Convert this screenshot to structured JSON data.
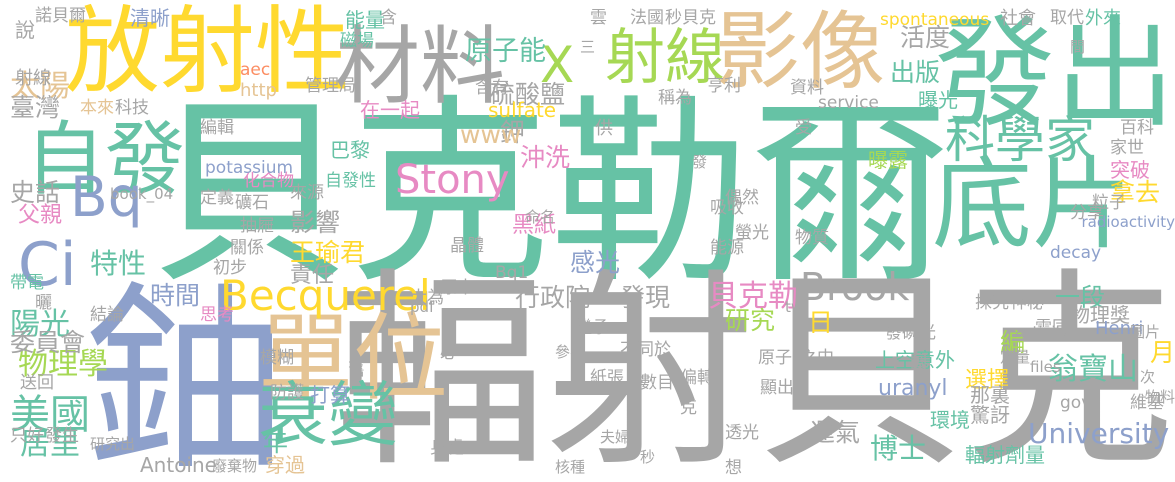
{
  "words": [
    {
      "text": "貝克勒爾",
      "color": "#66c2a5"
    },
    {
      "text": "輻射貝克",
      "color": "#a6a6a6"
    },
    {
      "text": "鈾",
      "color": "#8da0cb"
    },
    {
      "text": "發出",
      "color": "#66c2a5"
    },
    {
      "text": "放射性",
      "color": "#ffd92f"
    },
    {
      "text": "射線",
      "color": "#a6d854"
    },
    {
      "text": "材料",
      "color": "#a6a6a6"
    },
    {
      "text": "影像",
      "color": "#e5c494"
    },
    {
      "text": "X",
      "color": "#a6d854"
    },
    {
      "text": "自發",
      "color": "#66c2a5"
    },
    {
      "text": "單位",
      "color": "#e5c494"
    },
    {
      "text": "衰變",
      "color": "#66c2a5"
    },
    {
      "text": "底片",
      "color": "#66c2a5"
    },
    {
      "text": "科學家",
      "color": "#66c2a5"
    },
    {
      "text": "Bq",
      "color": "#8da0cb"
    },
    {
      "text": "Ci",
      "color": "#8da0cb"
    },
    {
      "text": "Becquerel",
      "color": "#ffd92f"
    },
    {
      "text": "Stony",
      "color": "#e78ac3"
    },
    {
      "text": "Brook",
      "color": "#a6a6a6"
    },
    {
      "text": "University",
      "color": "#8da0cb"
    },
    {
      "text": "美國",
      "color": "#66c2a5"
    },
    {
      "text": "物理學",
      "color": "#a6d854"
    },
    {
      "text": "居里",
      "color": "#66c2a5"
    },
    {
      "text": "陽光",
      "color": "#66c2a5"
    },
    {
      "text": "委員會",
      "color": "#a6a6a6"
    },
    {
      "text": "太陽",
      "color": "#e5c494"
    },
    {
      "text": "臺灣",
      "color": "#a6a6a6"
    },
    {
      "text": "史話",
      "color": "#a6a6a6"
    },
    {
      "text": "父親",
      "color": "#e78ac3"
    },
    {
      "text": "特性",
      "color": "#66c2a5"
    },
    {
      "text": "時間",
      "color": "#8da0cb"
    },
    {
      "text": "翁寶山",
      "color": "#66c2a5"
    },
    {
      "text": "博士",
      "color": "#66c2a5"
    },
    {
      "text": "貝克勒",
      "color": "#e78ac3"
    },
    {
      "text": "發現",
      "color": "#a6a6a6"
    },
    {
      "text": "研究",
      "color": "#a6d854"
    },
    {
      "text": "行政院",
      "color": "#a6a6a6"
    },
    {
      "text": "感光",
      "color": "#8da0cb"
    },
    {
      "text": "沖洗",
      "color": "#e78ac3"
    },
    {
      "text": "影響",
      "color": "#a6a6a6"
    },
    {
      "text": "王瑜君",
      "color": "#ffd92f"
    },
    {
      "text": "責任",
      "color": "#a6a6a6"
    },
    {
      "text": "黑紙",
      "color": "#e78ac3"
    },
    {
      "text": "鉀",
      "color": "#a6a6a6"
    },
    {
      "text": "www",
      "color": "#e5c494"
    },
    {
      "text": "巴黎",
      "color": "#66c2a5"
    },
    {
      "text": "自發性",
      "color": "#66c2a5"
    },
    {
      "text": "化合物",
      "color": "#e78ac3"
    },
    {
      "text": "原子能",
      "color": "#66c2a5"
    },
    {
      "text": "硫酸鹽",
      "color": "#a6a6a6"
    },
    {
      "text": "sulfate",
      "color": "#ffd92f"
    },
    {
      "text": "在一起",
      "color": "#e78ac3"
    },
    {
      "text": "活度",
      "color": "#a6a6a6"
    },
    {
      "text": "出版",
      "color": "#66c2a5"
    },
    {
      "text": "曝光",
      "color": "#66c2a5"
    },
    {
      "text": "曝露",
      "color": "#a6d854"
    },
    {
      "text": "突破",
      "color": "#e78ac3"
    },
    {
      "text": "拿去",
      "color": "#ffd92f"
    },
    {
      "text": "一段",
      "color": "#66c2a5"
    },
    {
      "text": "物理獎",
      "color": "#a6a6a6"
    },
    {
      "text": "Henri",
      "color": "#8da0cb"
    },
    {
      "text": "月",
      "color": "#ffd92f"
    },
    {
      "text": "日",
      "color": "#ffd92f"
    },
    {
      "text": "年",
      "color": "#66c2a5"
    },
    {
      "text": "編",
      "color": "#a6d854"
    },
    {
      "text": "上空",
      "color": "#66c2a5"
    },
    {
      "text": "意外",
      "color": "#66c2a5"
    },
    {
      "text": "uranyl",
      "color": "#8da0cb"
    },
    {
      "text": "選擇",
      "color": "#ffd92f"
    },
    {
      "text": "驚訝",
      "color": "#a6a6a6"
    },
    {
      "text": "那裏",
      "color": "#a6a6a6"
    },
    {
      "text": "環境",
      "color": "#66c2a5"
    },
    {
      "text": "運氣",
      "color": "#a6a6a6"
    },
    {
      "text": "輻射劑量",
      "color": "#66c2a5"
    },
    {
      "text": "穿過",
      "color": "#e5c494"
    },
    {
      "text": "打算",
      "color": "#8da0cb"
    },
    {
      "text": "Antoine",
      "color": "#a6a6a6"
    },
    {
      "text": "potassium",
      "color": "#8da0cb"
    },
    {
      "text": "spontaneous",
      "color": "#ffd92f"
    },
    {
      "text": "能量",
      "color": "#66c2a5"
    },
    {
      "text": "磁場",
      "color": "#66c2a5"
    },
    {
      "text": "清晰",
      "color": "#8da0cb"
    },
    {
      "text": "諾貝爾",
      "color": "#a6a6a6"
    },
    {
      "text": "說",
      "color": "#a6a6a6"
    },
    {
      "text": "射線",
      "color": "#a6a6a6"
    },
    {
      "text": "科技",
      "color": "#a6a6a6"
    },
    {
      "text": "本來",
      "color": "#e5c494"
    },
    {
      "text": "http",
      "color": "#e5c494"
    },
    {
      "text": "aec",
      "color": "#fc8d62"
    },
    {
      "text": "管理局",
      "color": "#a6a6a6"
    },
    {
      "text": "含",
      "color": "#a6a6a6"
    },
    {
      "text": "含有",
      "color": "#a6a6a6"
    },
    {
      "text": "雲",
      "color": "#a6a6a6"
    },
    {
      "text": "法國",
      "color": "#a6a6a6"
    },
    {
      "text": "秒貝克",
      "color": "#a6a6a6"
    },
    {
      "text": "社會",
      "color": "#a6a6a6"
    },
    {
      "text": "取代",
      "color": "#a6a6a6"
    },
    {
      "text": "外來",
      "color": "#66c2a5"
    },
    {
      "text": "資料",
      "color": "#a6a6a6"
    },
    {
      "text": "service",
      "color": "#a6a6a6"
    },
    {
      "text": "亨利",
      "color": "#a6a6a6"
    },
    {
      "text": "稱為",
      "color": "#a6a6a6"
    },
    {
      "text": "供",
      "color": "#a6a6a6"
    },
    {
      "text": "受",
      "color": "#a6a6a6"
    },
    {
      "text": "百科",
      "color": "#a6a6a6"
    },
    {
      "text": "家世",
      "color": "#a6a6a6"
    },
    {
      "text": "粒子",
      "color": "#a6a6a6"
    },
    {
      "text": "分享",
      "color": "#a6a6a6"
    },
    {
      "text": "radioactivity",
      "color": "#8da0cb"
    },
    {
      "text": "decay",
      "color": "#8da0cb"
    },
    {
      "text": "帶電",
      "color": "#66c2a5"
    },
    {
      "text": "曬",
      "color": "#a6a6a6"
    },
    {
      "text": "結論",
      "color": "#a6a6a6"
    },
    {
      "text": "思考",
      "color": "#e78ac3"
    },
    {
      "text": "送回",
      "color": "#a6a6a6"
    },
    {
      "text": "只好",
      "color": "#a6a6a6"
    },
    {
      "text": "發生",
      "color": "#a6a6a6"
    },
    {
      "text": "研究出",
      "color": "#a6a6a6"
    },
    {
      "text": "廢棄物",
      "color": "#a6a6a6"
    },
    {
      "text": "身處",
      "color": "#a6a6a6"
    },
    {
      "text": "核種",
      "color": "#a6a6a6"
    },
    {
      "text": "夫婦",
      "color": "#a6a6a6"
    },
    {
      "text": "秒",
      "color": "#a6a6a6"
    },
    {
      "text": "想",
      "color": "#a6a6a6"
    },
    {
      "text": "透光",
      "color": "#a6a6a6"
    },
    {
      "text": "克",
      "color": "#a6a6a6"
    },
    {
      "text": "偏轉",
      "color": "#a6a6a6"
    },
    {
      "text": "數目",
      "color": "#a6a6a6"
    },
    {
      "text": "紙張",
      "color": "#a6a6a6"
    },
    {
      "text": "不同於",
      "color": "#a6a6a6"
    },
    {
      "text": "繼承",
      "color": "#a6a6a6"
    },
    {
      "text": "參考",
      "color": "#a6a6a6"
    },
    {
      "text": "必",
      "color": "#a6a6a6"
    },
    {
      "text": "pdf",
      "color": "#a6a6a6"
    },
    {
      "text": "舊",
      "color": "#a6a6a6"
    },
    {
      "text": "模糊",
      "color": "#a6a6a6"
    },
    {
      "text": "防護",
      "color": "#a6a6a6"
    },
    {
      "text": "原本",
      "color": "#a6a6a6"
    },
    {
      "text": "大為",
      "color": "#a6a6a6"
    },
    {
      "text": "Bq1",
      "color": "#a6a6a6"
    },
    {
      "text": "晶體",
      "color": "#a6a6a6"
    },
    {
      "text": "初步",
      "color": "#a6a6a6"
    },
    {
      "text": "關係",
      "color": "#a6a6a6"
    },
    {
      "text": "抽屜",
      "color": "#a6a6a6"
    },
    {
      "text": "定義",
      "color": "#a6a6a6"
    },
    {
      "text": "礦石",
      "color": "#a6a6a6"
    },
    {
      "text": "來源",
      "color": "#a6a6a6"
    },
    {
      "text": "book_04",
      "color": "#a6a6a6"
    },
    {
      "text": "命名",
      "color": "#a6a6a6"
    },
    {
      "text": "能源",
      "color": "#a6a6a6"
    },
    {
      "text": "吸收",
      "color": "#a6a6a6"
    },
    {
      "text": "螢光",
      "color": "#a6a6a6"
    },
    {
      "text": "偶然",
      "color": "#a6a6a6"
    },
    {
      "text": "發",
      "color": "#a6a6a6"
    },
    {
      "text": "物質",
      "color": "#a6a6a6"
    },
    {
      "text": "探究",
      "color": "#a6a6a6"
    },
    {
      "text": "神秘",
      "color": "#a6a6a6"
    },
    {
      "text": "tw",
      "color": "#a6a6a6"
    },
    {
      "text": "發磷光",
      "color": "#a6a6a6"
    },
    {
      "text": "原子",
      "color": "#a6a6a6"
    },
    {
      "text": "之中",
      "color": "#a6a6a6"
    },
    {
      "text": "圖",
      "color": "#a6a6a6"
    },
    {
      "text": "顯出",
      "color": "#a6a6a6"
    },
    {
      "text": "雷同",
      "color": "#a6a6a6"
    },
    {
      "text": "activity",
      "color": "#a6a6a6"
    },
    {
      "text": "圖片",
      "color": "#a6a6a6"
    },
    {
      "text": "files",
      "color": "#a6a6a6"
    },
    {
      "text": "定量",
      "color": "#a6a6a6"
    },
    {
      "text": "次",
      "color": "#a6a6a6"
    },
    {
      "text": "物料",
      "color": "#a6a6a6"
    },
    {
      "text": "維基",
      "color": "#a6a6a6"
    },
    {
      "text": "gov",
      "color": "#a6a6a6"
    },
    {
      "text": "三",
      "color": "#a6a6a6"
    },
    {
      "text": "間",
      "color": "#a6a6a6"
    },
    {
      "text": "編輯",
      "color": "#a6a6a6"
    }
  ]
}
